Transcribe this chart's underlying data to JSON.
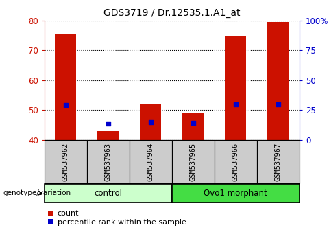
{
  "title": "GDS3719 / Dr.12535.1.A1_at",
  "samples": [
    "GSM537962",
    "GSM537963",
    "GSM537964",
    "GSM537965",
    "GSM537966",
    "GSM537967"
  ],
  "count_values": [
    75.5,
    43.0,
    52.0,
    49.0,
    75.0,
    79.5
  ],
  "percentile_values": [
    29.0,
    13.5,
    14.5,
    14.0,
    29.5,
    29.5
  ],
  "ylim_left": [
    40,
    80
  ],
  "ylim_right": [
    0,
    100
  ],
  "yticks_left": [
    40,
    50,
    60,
    70,
    80
  ],
  "yticks_right": [
    0,
    25,
    50,
    75,
    100
  ],
  "yticklabels_right": [
    "0",
    "25",
    "50",
    "75",
    "100%"
  ],
  "groups": [
    {
      "label": "control",
      "span": [
        0,
        3
      ],
      "color": "#ccffcc"
    },
    {
      "label": "Ovo1 morphant",
      "span": [
        3,
        6
      ],
      "color": "#44dd44"
    }
  ],
  "bar_color": "#cc1100",
  "dot_color": "#0000cc",
  "bar_width": 0.5,
  "grid_color": "black",
  "label_color_left": "#cc1100",
  "label_color_right": "#0000cc",
  "legend_count_label": "count",
  "legend_pct_label": "percentile rank within the sample",
  "genotype_label": "genotype/variation",
  "xticklabel_bg": "#cccccc",
  "dot_size": 25,
  "title_fontsize": 10
}
